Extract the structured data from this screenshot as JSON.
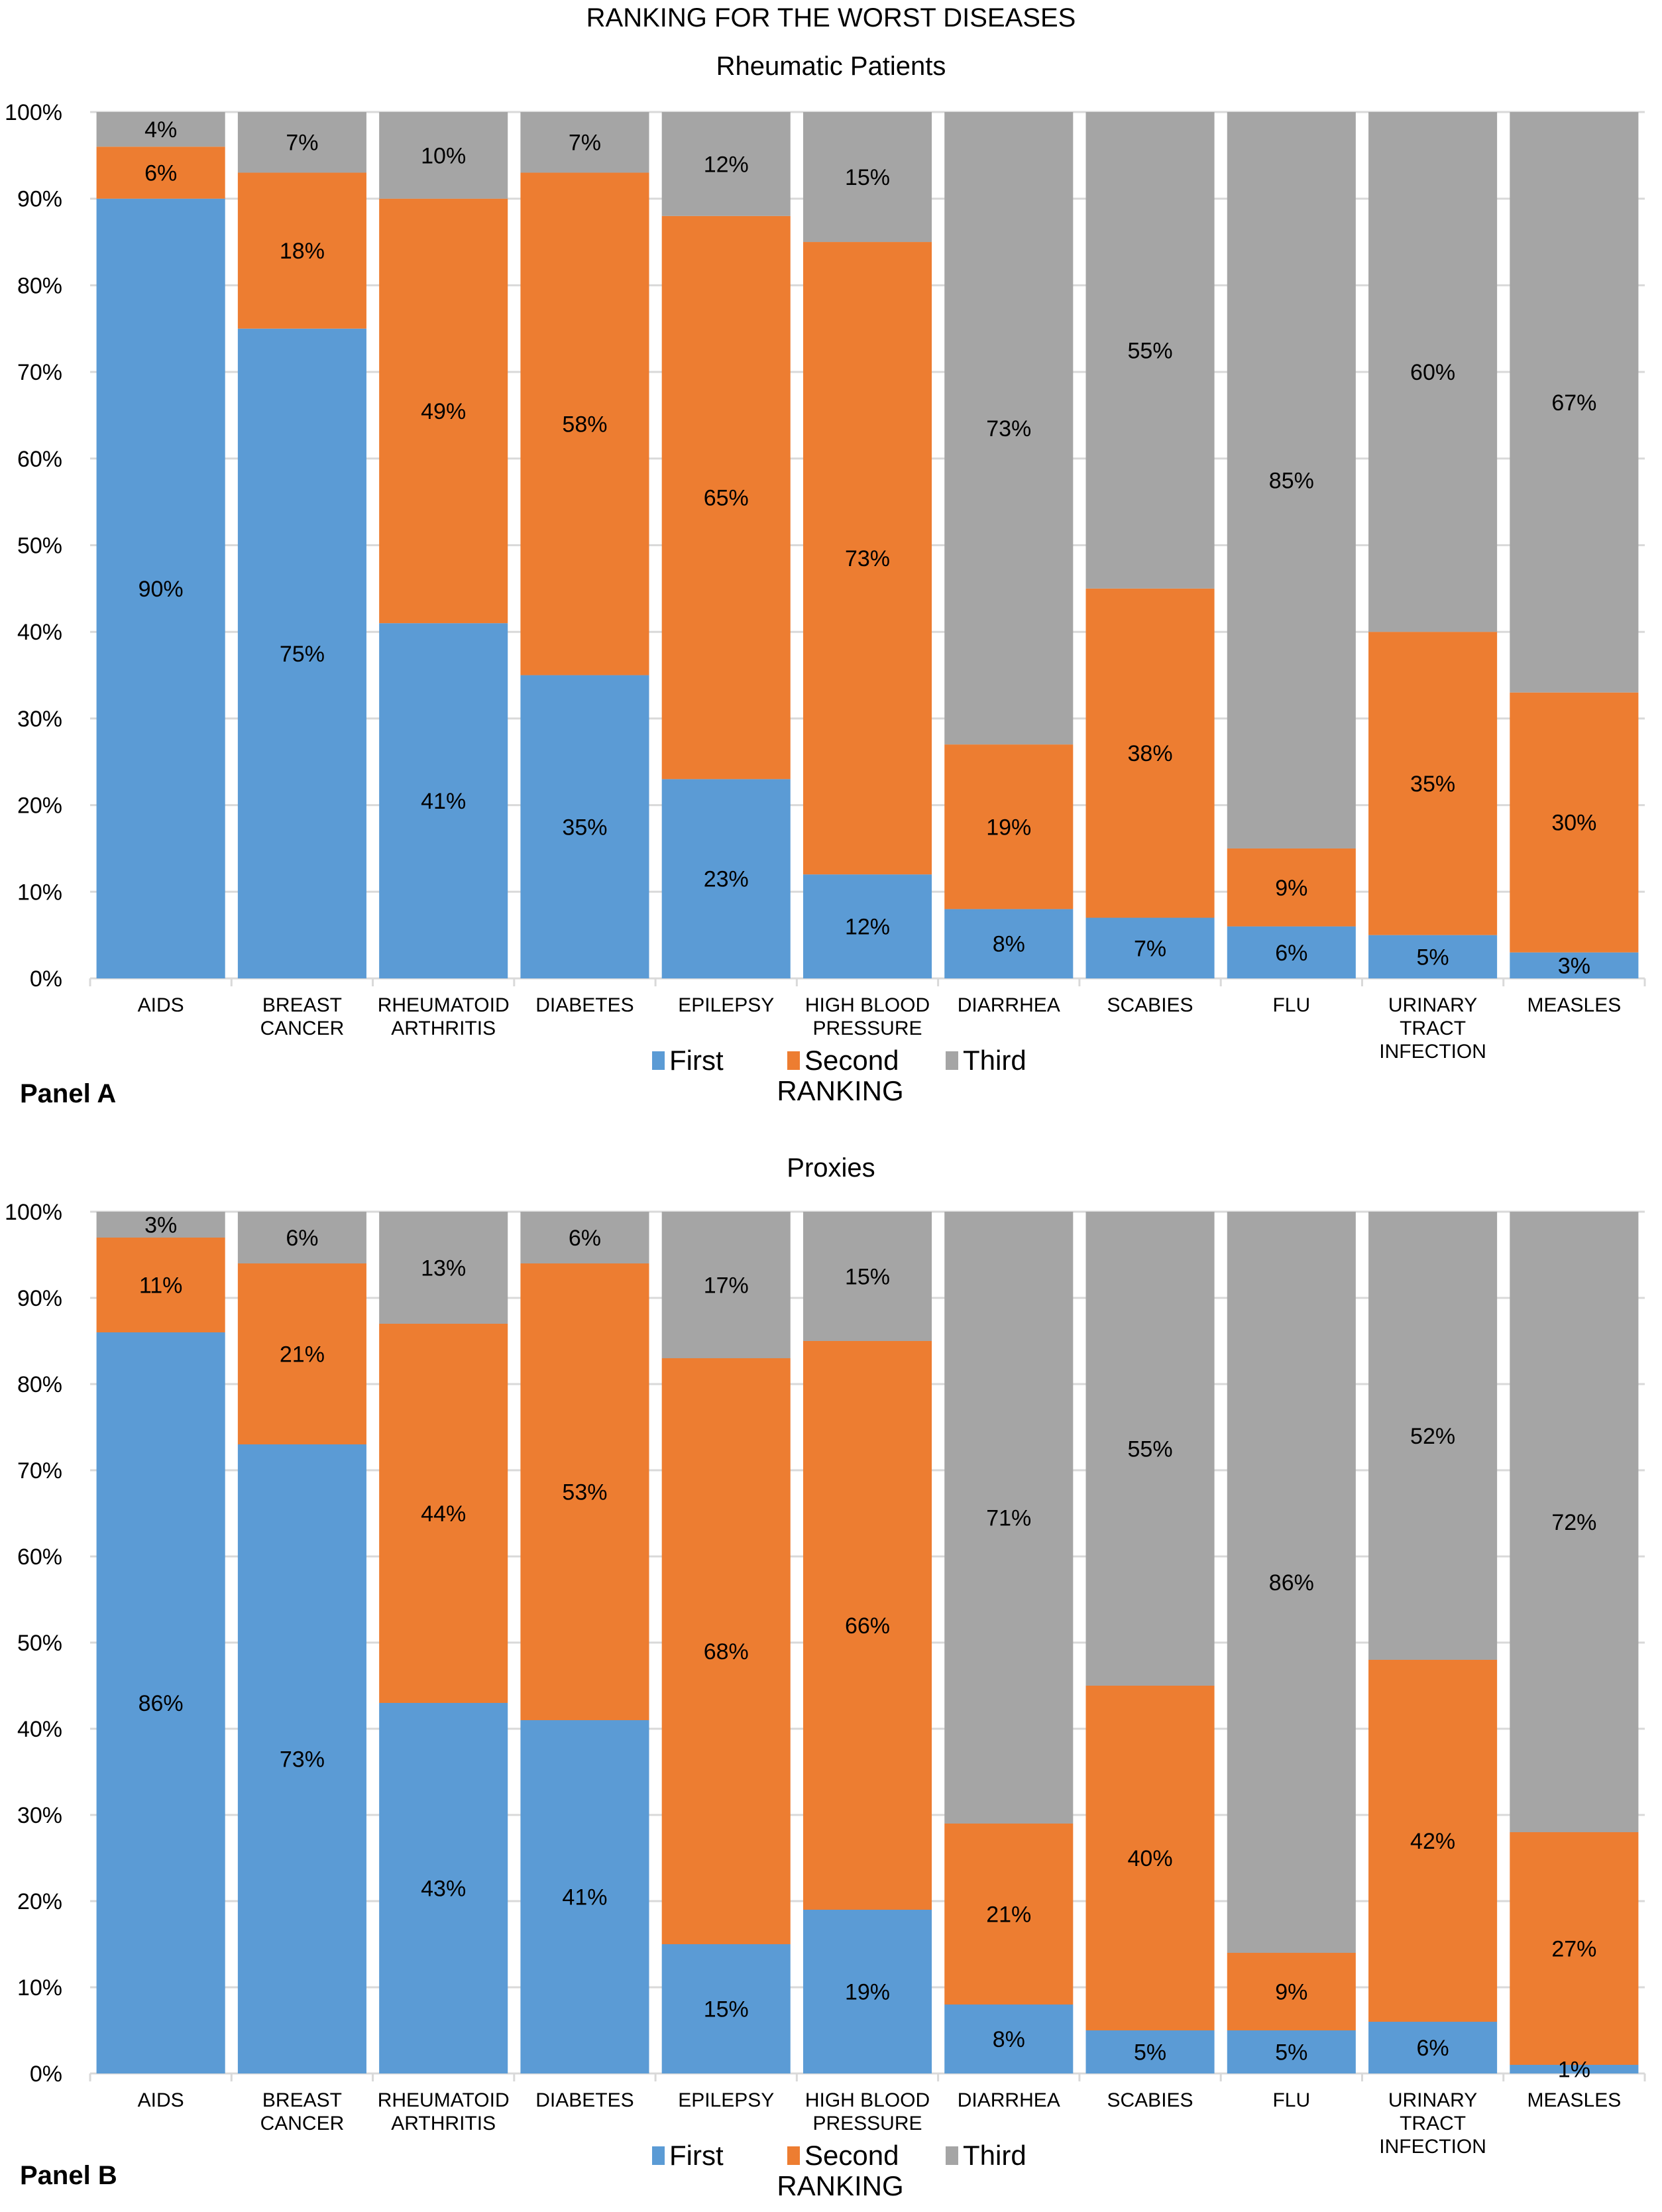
{
  "figure_title": "RANKING FOR THE WORST DISEASES",
  "chart_data": [
    {
      "type": "bar",
      "stacked": "percent",
      "panel_label": "Panel A",
      "title": "Rheumatic Patients",
      "xlabel": "",
      "ylabel": "",
      "ylim": [
        0,
        100
      ],
      "yticks": [
        "0%",
        "10%",
        "20%",
        "30%",
        "40%",
        "50%",
        "60%",
        "70%",
        "80%",
        "90%",
        "100%"
      ],
      "grid": true,
      "legend_title": "RANKING",
      "legend_position": "bottom",
      "categories": [
        [
          "AIDS"
        ],
        [
          "BREAST",
          "CANCER"
        ],
        [
          "RHEUMATOID",
          "ARTHRITIS"
        ],
        [
          "DIABETES"
        ],
        [
          "EPILEPSY"
        ],
        [
          "HIGH BLOOD",
          "PRESSURE"
        ],
        [
          "DIARRHEA"
        ],
        [
          "SCABIES"
        ],
        [
          "FLU"
        ],
        [
          "URINARY",
          "TRACT",
          "INFECTION"
        ],
        [
          "MEASLES"
        ]
      ],
      "series": [
        {
          "name": "First",
          "color": "#5b9bd5",
          "values": [
            90,
            75,
            41,
            35,
            23,
            12,
            8,
            7,
            6,
            5,
            3
          ]
        },
        {
          "name": "Second",
          "color": "#ed7d31",
          "values": [
            6,
            18,
            49,
            58,
            65,
            73,
            19,
            38,
            9,
            35,
            30
          ]
        },
        {
          "name": "Third",
          "color": "#a5a5a5",
          "values": [
            4,
            7,
            10,
            7,
            12,
            15,
            73,
            55,
            85,
            60,
            67
          ]
        }
      ]
    },
    {
      "type": "bar",
      "stacked": "percent",
      "panel_label": "Panel B",
      "title": "Proxies",
      "xlabel": "",
      "ylabel": "",
      "ylim": [
        0,
        100
      ],
      "yticks": [
        "0%",
        "10%",
        "20%",
        "30%",
        "40%",
        "50%",
        "60%",
        "70%",
        "80%",
        "90%",
        "100%"
      ],
      "grid": true,
      "legend_title": "RANKING",
      "legend_position": "bottom",
      "categories": [
        [
          "AIDS"
        ],
        [
          "BREAST",
          "CANCER"
        ],
        [
          "RHEUMATOID",
          "ARTHRITIS"
        ],
        [
          "DIABETES"
        ],
        [
          "EPILEPSY"
        ],
        [
          "HIGH BLOOD",
          "PRESSURE"
        ],
        [
          "DIARRHEA"
        ],
        [
          "SCABIES"
        ],
        [
          "FLU"
        ],
        [
          "URINARY",
          "TRACT",
          "INFECTION"
        ],
        [
          "MEASLES"
        ]
      ],
      "series": [
        {
          "name": "First",
          "color": "#5b9bd5",
          "values": [
            86,
            73,
            43,
            41,
            15,
            19,
            8,
            5,
            5,
            6,
            1
          ]
        },
        {
          "name": "Second",
          "color": "#ed7d31",
          "values": [
            11,
            21,
            44,
            53,
            68,
            66,
            21,
            40,
            9,
            42,
            27
          ]
        },
        {
          "name": "Third",
          "color": "#a5a5a5",
          "values": [
            3,
            6,
            13,
            6,
            17,
            15,
            71,
            55,
            86,
            52,
            72
          ]
        }
      ]
    }
  ]
}
